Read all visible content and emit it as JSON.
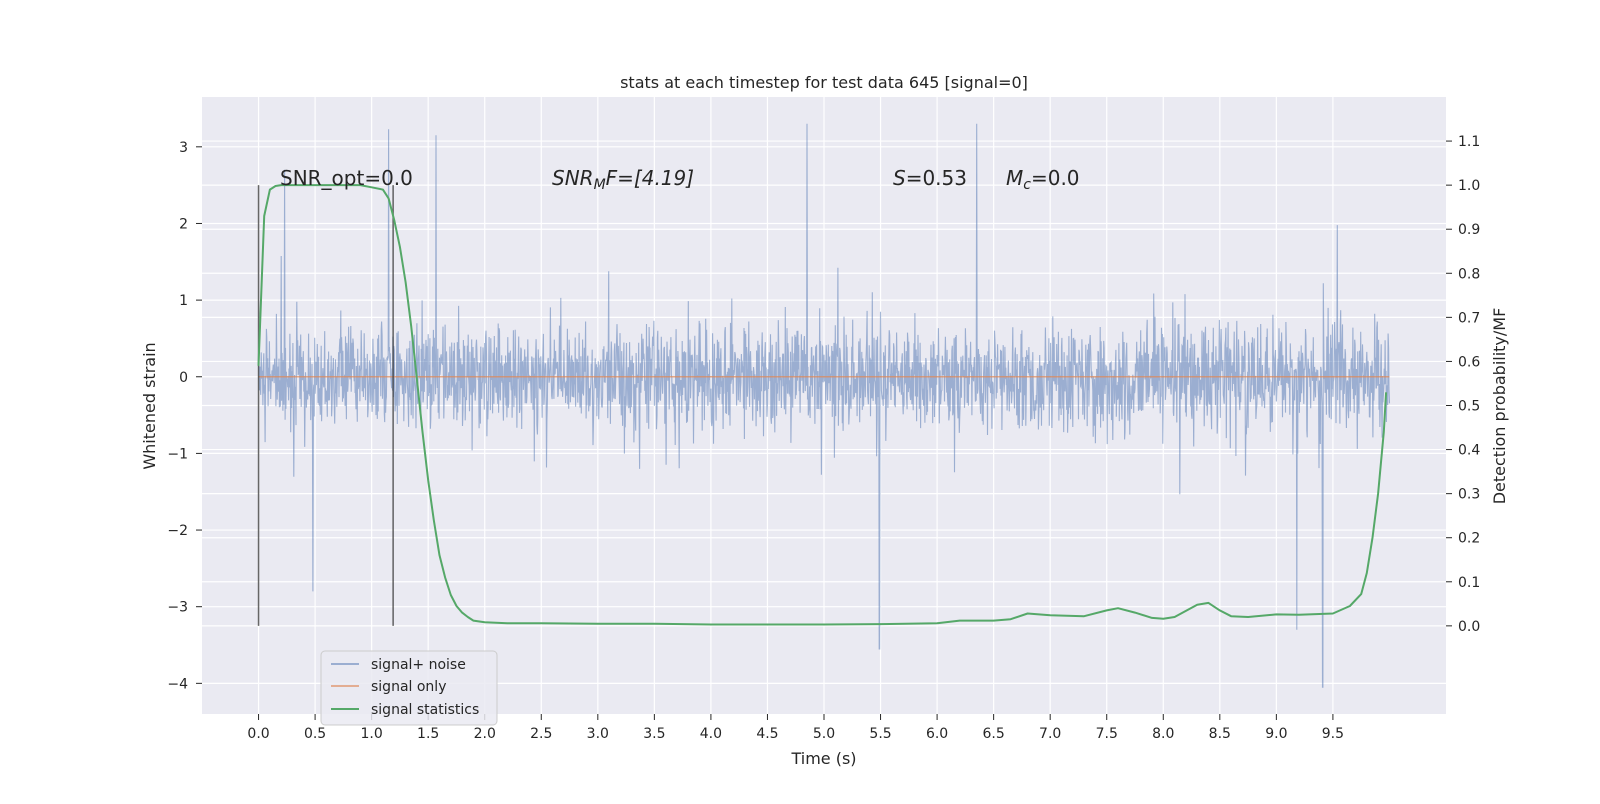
{
  "chart_data": {
    "type": "line",
    "title": "stats at each timestep for test data 645 [signal=0]",
    "xlabel": "Time (s)",
    "ylabel_left": "Whitened strain",
    "ylabel_right": "Detection probability/MF",
    "xlim": [
      -0.5,
      10.5
    ],
    "ylim_left": [
      -4.4,
      3.65
    ],
    "ylim_right": [
      -0.2,
      1.2
    ],
    "grid": true,
    "legend_position": "lower-left",
    "x_ticks": [
      0.0,
      0.5,
      1.0,
      1.5,
      2.0,
      2.5,
      3.0,
      3.5,
      4.0,
      4.5,
      5.0,
      5.5,
      6.0,
      6.5,
      7.0,
      7.5,
      8.0,
      8.5,
      9.0,
      9.5
    ],
    "x_tick_labels": [
      "0.0",
      "0.5",
      "1.0",
      "1.5",
      "2.0",
      "2.5",
      "3.0",
      "3.5",
      "4.0",
      "4.5",
      "5.0",
      "5.5",
      "6.0",
      "6.5",
      "7.0",
      "7.5",
      "8.0",
      "8.5",
      "9.0",
      "9.5"
    ],
    "y_left_ticks": [
      3,
      2,
      1,
      0,
      -1,
      -2,
      -3,
      -4
    ],
    "y_left_tick_labels": [
      "3",
      "2",
      "1",
      "0",
      "−1",
      "−2",
      "−3",
      "−4"
    ],
    "y_right_ticks": [
      1.1,
      1.0,
      0.9,
      0.8,
      0.7,
      0.6,
      0.5,
      0.4,
      0.3,
      0.2,
      0.1,
      0.0
    ],
    "y_right_tick_labels": [
      "1.1",
      "1.0",
      "0.9",
      "0.8",
      "0.7",
      "0.6",
      "0.5",
      "0.4",
      "0.3",
      "0.2",
      "0.1",
      "0.0"
    ],
    "annotations": {
      "snr_opt": "SNR_opt=0.0",
      "snr_mf_main": "SNR",
      "snr_mf_sub": "M",
      "snr_mf_rest": "F=[4.19]",
      "s_main": "S",
      "s_rest": "=0.53",
      "mc_main": "M",
      "mc_sub": "c",
      "mc_rest": "=0.0"
    },
    "vertical_lines_x": [
      0.0,
      1.19
    ],
    "series": [
      {
        "name": "signal+ noise",
        "color": "#4c72b0",
        "x_range": [
          0.0,
          10.0
        ],
        "sample_rate_hz": 2048,
        "envelope": {
          "typical_band": [
            -1.5,
            1.4
          ],
          "min": -4.05,
          "max": 3.3
        },
        "notable_peaks": [
          [
            0.23,
            2.7
          ],
          [
            1.15,
            3.23
          ],
          [
            1.57,
            3.15
          ],
          [
            4.85,
            3.3
          ],
          [
            6.35,
            3.3
          ],
          [
            5.49,
            -3.55
          ],
          [
            9.41,
            -4.05
          ],
          [
            9.18,
            -3.3
          ],
          [
            0.48,
            -2.8
          ]
        ]
      },
      {
        "name": "signal only",
        "color": "#dd8452",
        "x": [
          0.0,
          10.0
        ],
        "y": [
          0.0,
          0.0
        ]
      },
      {
        "name": "signal statistics",
        "color": "#55a868",
        "axis": "right",
        "x": [
          0.0,
          0.05,
          0.1,
          0.15,
          0.2,
          0.3,
          0.5,
          0.7,
          0.9,
          1.0,
          1.1,
          1.15,
          1.2,
          1.25,
          1.3,
          1.35,
          1.4,
          1.45,
          1.5,
          1.55,
          1.6,
          1.65,
          1.7,
          1.75,
          1.8,
          1.85,
          1.9,
          2.0,
          2.2,
          2.5,
          3.0,
          3.5,
          4.0,
          4.5,
          5.0,
          5.5,
          6.0,
          6.2,
          6.5,
          6.65,
          6.8,
          7.0,
          7.3,
          7.5,
          7.6,
          7.75,
          7.9,
          8.0,
          8.1,
          8.3,
          8.4,
          8.5,
          8.6,
          8.75,
          9.0,
          9.2,
          9.5,
          9.65,
          9.75,
          9.8,
          9.85,
          9.9,
          9.95,
          9.97
        ],
        "y": [
          0.59,
          0.93,
          0.99,
          0.998,
          1.0,
          1.0,
          1.0,
          1.0,
          1.0,
          0.995,
          0.99,
          0.97,
          0.92,
          0.86,
          0.78,
          0.68,
          0.56,
          0.44,
          0.33,
          0.24,
          0.16,
          0.11,
          0.07,
          0.045,
          0.03,
          0.02,
          0.012,
          0.008,
          0.006,
          0.006,
          0.005,
          0.005,
          0.003,
          0.003,
          0.003,
          0.004,
          0.006,
          0.012,
          0.012,
          0.015,
          0.028,
          0.024,
          0.022,
          0.035,
          0.04,
          0.03,
          0.018,
          0.016,
          0.02,
          0.048,
          0.052,
          0.035,
          0.022,
          0.02,
          0.026,
          0.025,
          0.028,
          0.045,
          0.072,
          0.12,
          0.2,
          0.3,
          0.44,
          0.53
        ]
      }
    ]
  }
}
